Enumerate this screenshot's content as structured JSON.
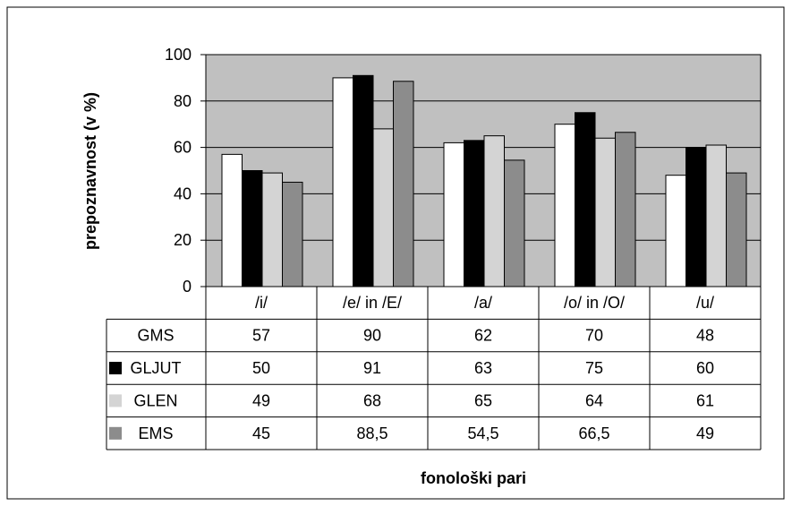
{
  "chart_data": {
    "type": "bar",
    "title": "",
    "xlabel": "fonološki pari",
    "ylabel": "prepoznavnost (v %)",
    "ylim": [
      0,
      100
    ],
    "yticks": [
      0,
      20,
      40,
      60,
      80,
      100
    ],
    "grid": true,
    "legend_placement": "data-table-left",
    "categories": [
      "/i/",
      "/e/ in /E/",
      "/a/",
      "/o/ in /O/",
      "/u/"
    ],
    "series": [
      {
        "name": "GMS",
        "color": "#ffffff",
        "values": [
          57,
          90,
          62,
          70,
          48
        ],
        "labels": [
          "57",
          "90",
          "62",
          "70",
          "48"
        ]
      },
      {
        "name": "GLJUT",
        "color": "#000000",
        "values": [
          50,
          91,
          63,
          75,
          60
        ],
        "labels": [
          "50",
          "91",
          "63",
          "75",
          "60"
        ]
      },
      {
        "name": "GLEN",
        "color": "#d4d4d4",
        "values": [
          49,
          68,
          65,
          64,
          61
        ],
        "labels": [
          "49",
          "68",
          "65",
          "64",
          "61"
        ]
      },
      {
        "name": "EMS",
        "color": "#8c8c8c",
        "values": [
          45,
          88.5,
          54.5,
          66.5,
          49
        ],
        "labels": [
          "45",
          "88,5",
          "54,5",
          "66,5",
          "49"
        ]
      }
    ],
    "plot_background": "#c0c0c0"
  }
}
